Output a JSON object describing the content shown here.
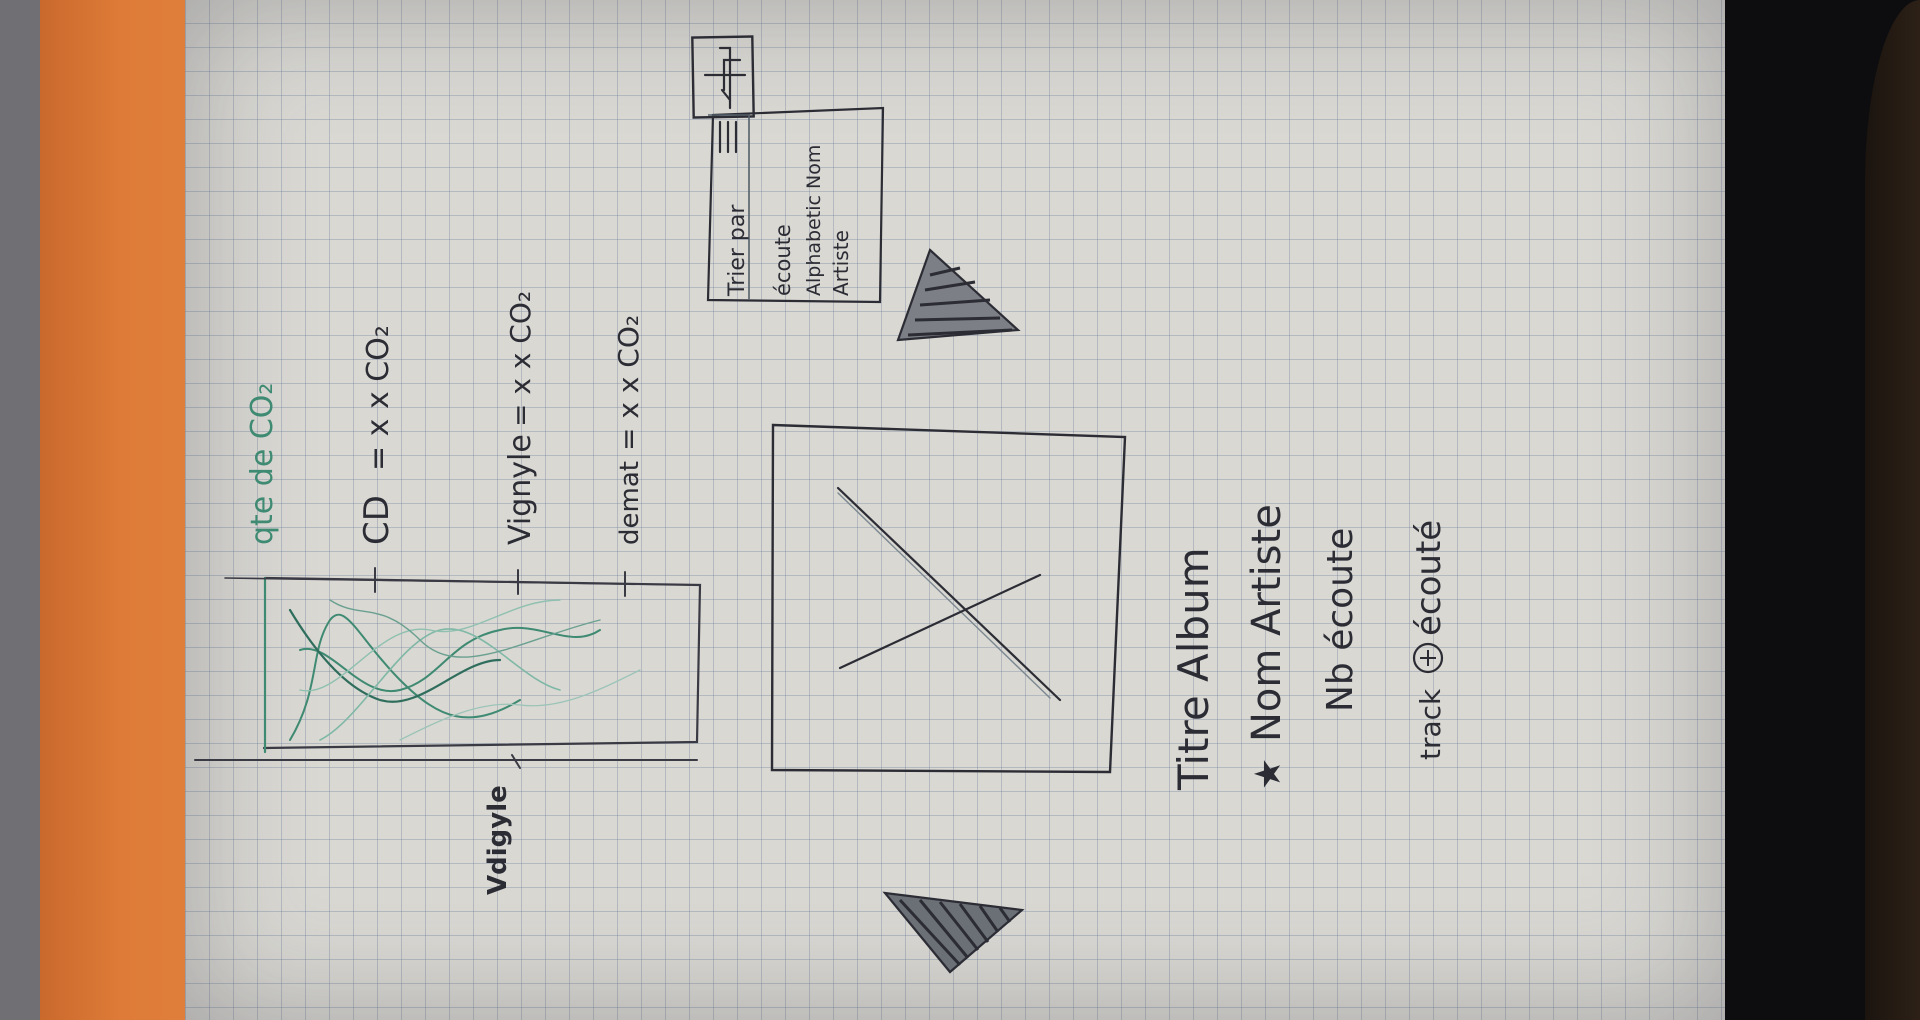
{
  "colors": {
    "paper": "#d9d8d3",
    "ink": "#2c2c35",
    "pencil": "#55606a",
    "green_ink": "#3f8a72",
    "orange_folder": "#de7b38"
  },
  "left_panel": {
    "axis_title": "qte de CO₂",
    "tick_labels": [
      "CD",
      "Vignyle",
      "demat"
    ],
    "legend": [
      {
        "label": "CD",
        "value": "= x x CO₂"
      },
      {
        "label": "Vignyle",
        "value": "= x x CO₂"
      },
      {
        "label": "demat",
        "value": "= x x CO₂"
      }
    ],
    "side_label": "Vdigyle"
  },
  "album_cover": {
    "icon": "image-placeholder-icon"
  },
  "album_info": {
    "title": "Titre Album",
    "artist": "Nom Artiste",
    "listens": "Nb écoute",
    "track": "track",
    "track_action": "écouté",
    "artist_icon": "star-icon",
    "track_icon": "plus-circle-icon"
  },
  "sort_panel": {
    "label": "Trier par",
    "menu_icon": "hamburger-icon",
    "options": [
      "écoute",
      "Alphabetic Nom",
      "Artiste"
    ],
    "order_button_icon": "sort-order-arrows-icon"
  },
  "navigation": {
    "prev_icon": "triangle-arrow-icon",
    "next_icon": "triangle-arrow-icon"
  }
}
